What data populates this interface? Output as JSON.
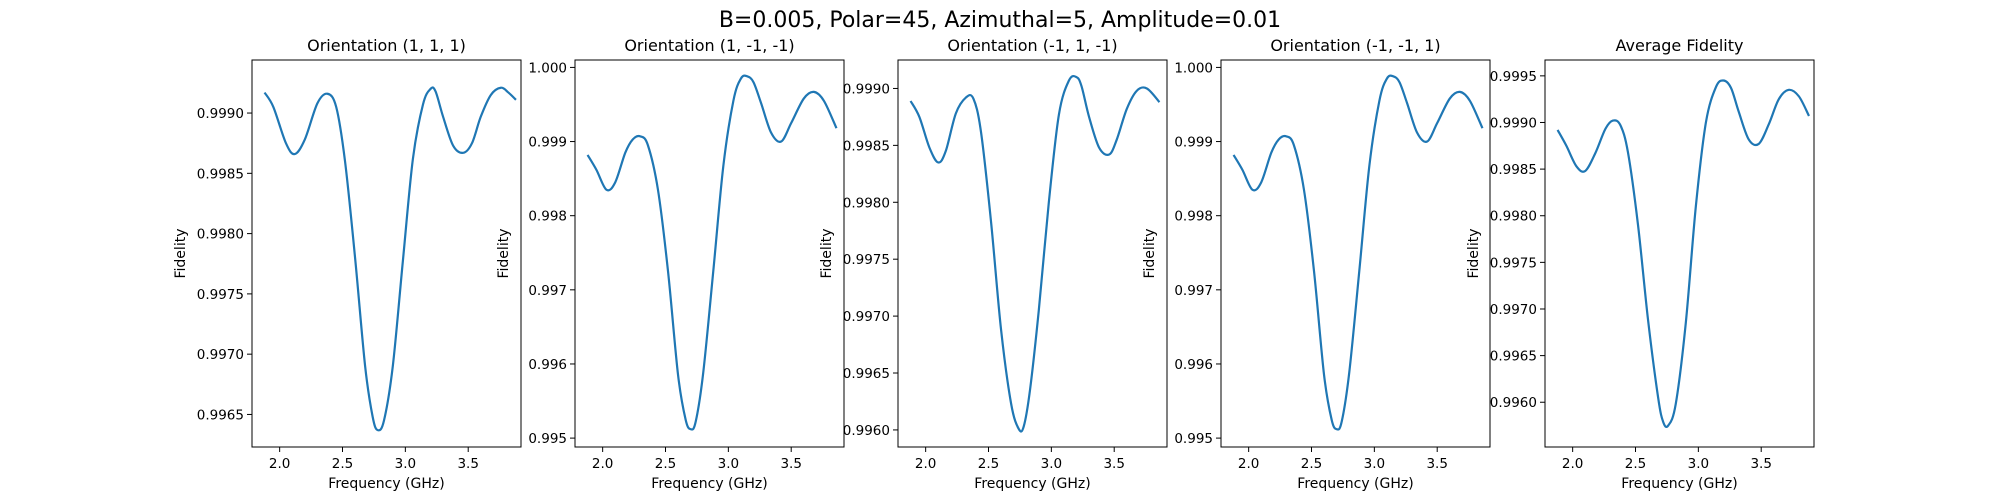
{
  "suptitle": "B=0.005, Polar=45, Azimuthal=5, Amplitude=0.01",
  "colors": {
    "line": "#1f77b4",
    "axes": "#000000",
    "background": "#ffffff"
  },
  "chart_data": [
    {
      "type": "line",
      "title": "Orientation (1, 1, 1)",
      "xlabel": "Frequency (GHz)",
      "ylabel": "Fidelity",
      "xlim": [
        1.78,
        3.92
      ],
      "ylim": [
        0.99623,
        0.99944
      ],
      "xticks": [
        2.0,
        2.5,
        3.0,
        3.5
      ],
      "xtick_labels": [
        "2.0",
        "2.5",
        "3.0",
        "3.5"
      ],
      "yticks": [
        0.9965,
        0.997,
        0.9975,
        0.998,
        0.9985,
        0.999
      ],
      "ytick_labels": [
        "0.9965",
        "0.9970",
        "0.9975",
        "0.9980",
        "0.9985",
        "0.9990"
      ],
      "grid": false,
      "series": [
        {
          "x": [
            1.88,
            1.95,
            2.05,
            2.12,
            2.2,
            2.3,
            2.38,
            2.45,
            2.52,
            2.6,
            2.68,
            2.74,
            2.78,
            2.83,
            2.9,
            2.98,
            3.06,
            3.14,
            3.2,
            3.24,
            3.3,
            3.38,
            3.46,
            3.53,
            3.6,
            3.68,
            3.76,
            3.82,
            3.88
          ],
          "y": [
            0.99917,
            0.99905,
            0.99875,
            0.99866,
            0.99878,
            0.99908,
            0.99916,
            0.99905,
            0.9986,
            0.9978,
            0.9969,
            0.99648,
            0.99637,
            0.99645,
            0.9969,
            0.99777,
            0.99862,
            0.99907,
            0.9992,
            0.99918,
            0.99897,
            0.99873,
            0.99867,
            0.99875,
            0.99897,
            0.99915,
            0.99921,
            0.99917,
            0.99911
          ]
        }
      ]
    },
    {
      "type": "line",
      "title": "Orientation (1, -1, -1)",
      "xlabel": "Frequency (GHz)",
      "ylabel": "Fidelity",
      "xlim": [
        1.78,
        3.92
      ],
      "ylim": [
        0.99488,
        1.0001
      ],
      "xticks": [
        2.0,
        2.5,
        3.0,
        3.5
      ],
      "xtick_labels": [
        "2.0",
        "2.5",
        "3.0",
        "3.5"
      ],
      "yticks": [
        0.995,
        0.996,
        0.997,
        0.998,
        0.999,
        1.0
      ],
      "ytick_labels": [
        "0.995",
        "0.996",
        "0.997",
        "0.998",
        "0.999",
        "1.000"
      ],
      "grid": false,
      "series": [
        {
          "x": [
            1.88,
            1.95,
            2.03,
            2.1,
            2.18,
            2.24,
            2.3,
            2.36,
            2.44,
            2.52,
            2.6,
            2.66,
            2.7,
            2.74,
            2.8,
            2.88,
            2.96,
            3.04,
            3.1,
            3.15,
            3.2,
            3.26,
            3.34,
            3.42,
            3.5,
            3.6,
            3.68,
            3.76,
            3.86
          ],
          "y": [
            0.99882,
            0.99862,
            0.99835,
            0.99845,
            0.99885,
            0.99903,
            0.99907,
            0.99895,
            0.99835,
            0.99725,
            0.99585,
            0.99525,
            0.99512,
            0.99522,
            0.99588,
            0.99725,
            0.99867,
            0.99955,
            0.99985,
            0.99988,
            0.9998,
            0.99952,
            0.99912,
            0.999,
            0.99925,
            0.99958,
            0.99967,
            0.99955,
            0.99918
          ]
        }
      ]
    },
    {
      "type": "line",
      "title": "Orientation (-1, 1, -1)",
      "xlabel": "Frequency (GHz)",
      "ylabel": "Fidelity",
      "xlim": [
        1.78,
        3.92
      ],
      "ylim": [
        0.99585,
        0.99925
      ],
      "xticks": [
        2.0,
        2.5,
        3.0,
        3.5
      ],
      "xtick_labels": [
        "2.0",
        "2.5",
        "3.0",
        "3.5"
      ],
      "yticks": [
        0.996,
        0.9965,
        0.997,
        0.9975,
        0.998,
        0.9985,
        0.999
      ],
      "ytick_labels": [
        "0.9960",
        "0.9965",
        "0.9970",
        "0.9975",
        "0.9980",
        "0.9985",
        "0.9990"
      ],
      "grid": false,
      "series": [
        {
          "x": [
            1.88,
            1.95,
            2.03,
            2.1,
            2.16,
            2.24,
            2.32,
            2.38,
            2.44,
            2.52,
            2.6,
            2.68,
            2.74,
            2.78,
            2.83,
            2.9,
            2.98,
            3.06,
            3.14,
            3.2,
            3.24,
            3.3,
            3.38,
            3.46,
            3.52,
            3.6,
            3.68,
            3.76,
            3.86
          ],
          "y": [
            0.99889,
            0.99875,
            0.99848,
            0.99835,
            0.99845,
            0.99878,
            0.99892,
            0.99891,
            0.99862,
            0.99783,
            0.99688,
            0.99623,
            0.99601,
            0.99603,
            0.99635,
            0.99705,
            0.998,
            0.99877,
            0.99907,
            0.9991,
            0.99902,
            0.99875,
            0.99848,
            0.99842,
            0.99855,
            0.99882,
            0.99898,
            0.999,
            0.99888
          ]
        }
      ]
    },
    {
      "type": "line",
      "title": "Orientation (-1, -1, 1)",
      "xlabel": "Frequency (GHz)",
      "ylabel": "Fidelity",
      "xlim": [
        1.78,
        3.92
      ],
      "ylim": [
        0.99488,
        1.0001
      ],
      "xticks": [
        2.0,
        2.5,
        3.0,
        3.5
      ],
      "xtick_labels": [
        "2.0",
        "2.5",
        "3.0",
        "3.5"
      ],
      "yticks": [
        0.995,
        0.996,
        0.997,
        0.998,
        0.999,
        1.0
      ],
      "ytick_labels": [
        "0.995",
        "0.996",
        "0.997",
        "0.998",
        "0.999",
        "1.000"
      ],
      "grid": false,
      "series": [
        {
          "x": [
            1.88,
            1.95,
            2.03,
            2.1,
            2.18,
            2.24,
            2.3,
            2.36,
            2.44,
            2.52,
            2.6,
            2.66,
            2.7,
            2.74,
            2.8,
            2.88,
            2.96,
            3.04,
            3.1,
            3.15,
            3.2,
            3.26,
            3.34,
            3.42,
            3.5,
            3.6,
            3.68,
            3.76,
            3.86
          ],
          "y": [
            0.99882,
            0.99862,
            0.99835,
            0.99845,
            0.99885,
            0.99903,
            0.99907,
            0.99895,
            0.99835,
            0.99725,
            0.99585,
            0.99525,
            0.99512,
            0.99522,
            0.99588,
            0.99725,
            0.99867,
            0.99955,
            0.99985,
            0.99988,
            0.9998,
            0.99952,
            0.99912,
            0.999,
            0.99925,
            0.99958,
            0.99967,
            0.99955,
            0.99918
          ]
        }
      ]
    },
    {
      "type": "line",
      "title": "Average Fidelity",
      "xlabel": "Frequency (GHz)",
      "ylabel": "Fidelity",
      "xlim": [
        1.78,
        3.92
      ],
      "ylim": [
        0.99552,
        0.99967
      ],
      "xticks": [
        2.0,
        2.5,
        3.0,
        3.5
      ],
      "xtick_labels": [
        "2.0",
        "2.5",
        "3.0",
        "3.5"
      ],
      "yticks": [
        0.996,
        0.9965,
        0.997,
        0.9975,
        0.998,
        0.9985,
        0.999,
        0.9995
      ],
      "ytick_labels": [
        "0.9960",
        "0.9965",
        "0.9970",
        "0.9975",
        "0.9980",
        "0.9985",
        "0.9990",
        "0.9995"
      ],
      "grid": false,
      "series": [
        {
          "x": [
            1.88,
            1.95,
            2.03,
            2.1,
            2.18,
            2.26,
            2.32,
            2.38,
            2.44,
            2.52,
            2.6,
            2.68,
            2.72,
            2.76,
            2.82,
            2.9,
            2.98,
            3.06,
            3.14,
            3.2,
            3.26,
            3.32,
            3.4,
            3.48,
            3.56,
            3.64,
            3.72,
            3.8,
            3.88
          ],
          "y": [
            0.99892,
            0.99875,
            0.99853,
            0.99848,
            0.99867,
            0.99893,
            0.99902,
            0.99897,
            0.99868,
            0.9979,
            0.99688,
            0.99605,
            0.99579,
            0.99575,
            0.99598,
            0.99685,
            0.9981,
            0.999,
            0.99938,
            0.99945,
            0.99937,
            0.99912,
            0.99882,
            0.99877,
            0.99898,
            0.99925,
            0.99935,
            0.99928,
            0.99907
          ]
        }
      ]
    }
  ]
}
